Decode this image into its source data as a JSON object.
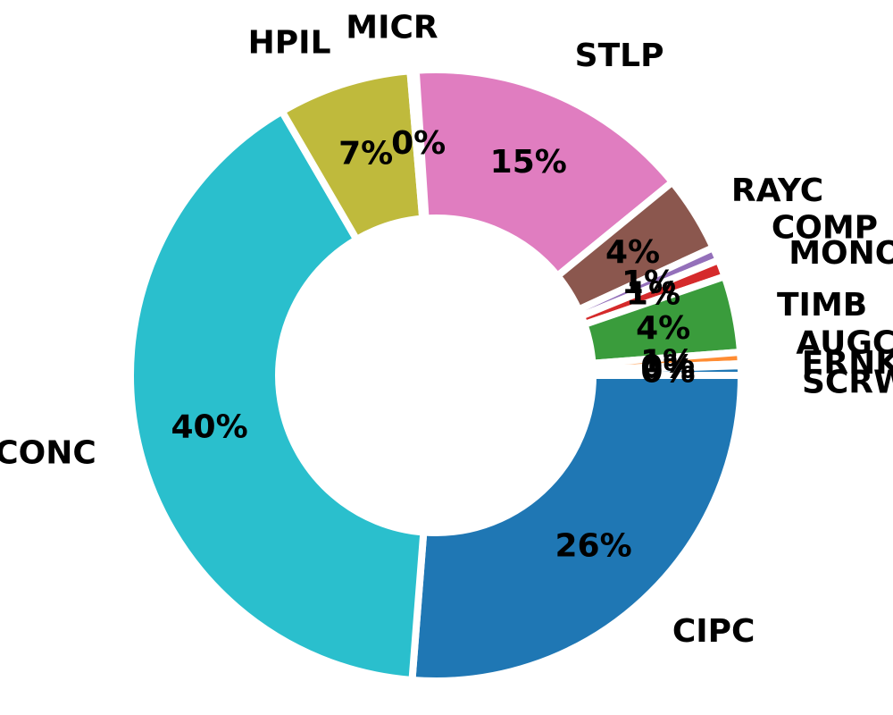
{
  "chart_data": {
    "type": "pie",
    "donut": true,
    "start_angle_deg": 0,
    "direction": "clockwise",
    "slices": [
      {
        "name": "CIPC",
        "value": 26,
        "label": "26%",
        "color": "#1f77b4"
      },
      {
        "name": "CONC",
        "value": 40,
        "label": "40%",
        "color": "#2abfcd"
      },
      {
        "name": "HPIL",
        "value": 7,
        "label": "7%",
        "color": "#bfba3c"
      },
      {
        "name": "MICR",
        "value": 0.3,
        "label": "0%",
        "color": "#7f7f7f"
      },
      {
        "name": "STLP",
        "value": 15,
        "label": "15%",
        "color": "#e07dc0"
      },
      {
        "name": "RAYC",
        "value": 4,
        "label": "4%",
        "color": "#8b574e"
      },
      {
        "name": "COMP",
        "value": 0.7,
        "label": "1%",
        "color": "#9470ba"
      },
      {
        "name": "MONO",
        "value": 0.9,
        "label": "1%",
        "color": "#d52a2b"
      },
      {
        "name": "TIMB",
        "value": 4,
        "label": "4%",
        "color": "#3a9c3c"
      },
      {
        "name": "AUGC",
        "value": 0.6,
        "label": "1%",
        "color": "#ff8c32"
      },
      {
        "name": "ERNK",
        "value": 0.1,
        "label": "0%",
        "color": "#c9c9c9"
      },
      {
        "name": "SCRW",
        "value": 0.5,
        "label": "0%",
        "color": "#1f77b4"
      }
    ]
  }
}
